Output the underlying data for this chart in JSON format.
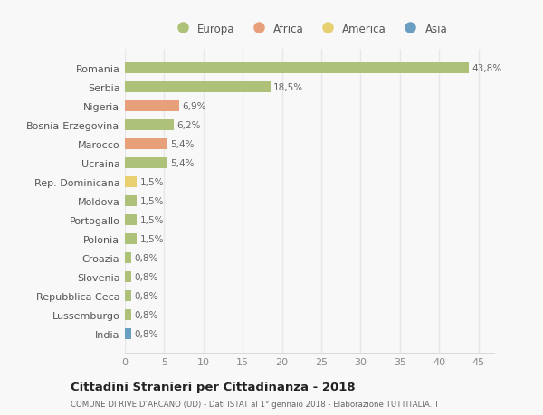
{
  "countries": [
    "Romania",
    "Serbia",
    "Nigeria",
    "Bosnia-Erzegovina",
    "Marocco",
    "Ucraina",
    "Rep. Dominicana",
    "Moldova",
    "Portogallo",
    "Polonia",
    "Croazia",
    "Slovenia",
    "Repubblica Ceca",
    "Lussemburgo",
    "India"
  ],
  "values": [
    43.8,
    18.5,
    6.9,
    6.2,
    5.4,
    5.4,
    1.5,
    1.5,
    1.5,
    1.5,
    0.8,
    0.8,
    0.8,
    0.8,
    0.8
  ],
  "labels": [
    "43,8%",
    "18,5%",
    "6,9%",
    "6,2%",
    "5,4%",
    "5,4%",
    "1,5%",
    "1,5%",
    "1,5%",
    "1,5%",
    "0,8%",
    "0,8%",
    "0,8%",
    "0,8%",
    "0,8%"
  ],
  "colors": [
    "#adc178",
    "#adc178",
    "#e8a07a",
    "#adc178",
    "#e8a07a",
    "#adc178",
    "#e8d070",
    "#adc178",
    "#adc178",
    "#adc178",
    "#adc178",
    "#adc178",
    "#adc178",
    "#adc178",
    "#6a9ec0"
  ],
  "legend_labels": [
    "Europa",
    "Africa",
    "America",
    "Asia"
  ],
  "legend_colors": [
    "#adc178",
    "#e8a07a",
    "#e8d070",
    "#6a9ec0"
  ],
  "title": "Cittadini Stranieri per Cittadinanza - 2018",
  "subtitle": "COMUNE DI RIVE D’ARCANO (UD) - Dati ISTAT al 1° gennaio 2018 - Elaborazione TUTTITALIA.IT",
  "xlim": [
    0,
    47
  ],
  "xticks": [
    0,
    5,
    10,
    15,
    20,
    25,
    30,
    35,
    40,
    45
  ],
  "background_color": "#f8f8f8",
  "grid_color": "#e8e8e8",
  "bar_height": 0.55
}
